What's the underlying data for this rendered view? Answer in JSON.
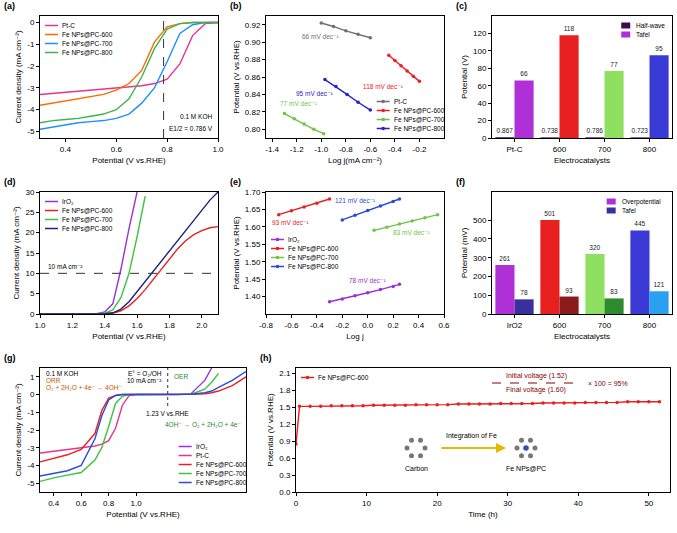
{
  "chart_data": [
    {
      "label": "(a)",
      "type": "line",
      "xlabel": "Potential (V vs.RHE)",
      "ylabel": "Current density (mA cm⁻²)",
      "xlim": [
        0.3,
        1.0
      ],
      "xticks": [
        0.4,
        0.6,
        0.8,
        {
          "value": 1,
          "label": "1.0"
        }
      ],
      "ylim": [
        -5.3,
        0.3
      ],
      "yticks": [
        -5,
        -4,
        -3,
        -2,
        -1,
        0
      ],
      "grid": false,
      "legend": "top left",
      "x": [
        0.3,
        0.35,
        0.4,
        0.45,
        0.5,
        0.55,
        0.6,
        0.65,
        0.7,
        0.75,
        0.8,
        0.85,
        0.9,
        0.95,
        1.0
      ],
      "series": [
        {
          "name": "Pt-C",
          "color": "#e8338f",
          "values": [
            -3.3,
            -3.25,
            -3.2,
            -3.15,
            -3.1,
            -3.05,
            -3.0,
            -2.95,
            -2.9,
            -2.8,
            -2.6,
            -1.9,
            -0.6,
            -0.05,
            0
          ]
        },
        {
          "name": "Fe NPs@PC-600",
          "color": "#ff6a00",
          "values": [
            -3.8,
            -3.7,
            -3.6,
            -3.5,
            -3.4,
            -3.3,
            -3.1,
            -2.8,
            -2.2,
            -0.9,
            -0.2,
            -0.05,
            0,
            0,
            0
          ]
        },
        {
          "name": "Fe NPs@PC-700",
          "color": "#1e90ff",
          "values": [
            -4.9,
            -4.8,
            -4.7,
            -4.6,
            -4.55,
            -4.5,
            -4.4,
            -4.2,
            -3.7,
            -3.0,
            -1.8,
            -0.5,
            -0.1,
            0,
            0
          ]
        },
        {
          "name": "Fe NPs@PC-800",
          "color": "#3cb44b",
          "values": [
            -4.6,
            -4.5,
            -4.45,
            -4.4,
            -4.3,
            -4.2,
            -4.0,
            -3.5,
            -2.5,
            -1.2,
            -0.3,
            -0.05,
            0,
            0,
            0
          ]
        }
      ],
      "annotations": [
        "0.1 M KOH"
      ],
      "vline": {
        "value": 0.786,
        "label": "E1/2 = 0.786 V"
      }
    },
    {
      "label": "(b)",
      "type": "line",
      "marker": "circle",
      "xlabel": "Log j(mA cm⁻²)",
      "ylabel": "Potential (V vs.RHE)",
      "xlim": [
        -1.45,
        0
      ],
      "xticks": [
        -1.4,
        -1.2,
        {
          "value": -1,
          "label": "-1.0"
        },
        -0.8,
        -0.6,
        -0.4,
        -0.2
      ],
      "ylim": [
        0.79,
        0.93
      ],
      "yticks": [
        {
          "value": 0.8,
          "label": "0.80"
        },
        0.82,
        0.84,
        0.86,
        0.88,
        {
          "value": 0.9,
          "label": "0.90"
        },
        0.92
      ],
      "grid": false,
      "legend": "bottom right",
      "series": [
        {
          "name": "Pt-C",
          "color": "#707070",
          "label": "66 mV dec⁻¹",
          "x": [
            -1.0,
            -0.9,
            -0.8,
            -0.7,
            -0.6
          ],
          "values": [
            0.922,
            0.918,
            0.913,
            0.909,
            0.905
          ]
        },
        {
          "name": "Fe NPs@PC-600",
          "color": "#e8201f",
          "label": "118 mV dec⁻¹",
          "x": [
            -0.45,
            -0.4,
            -0.35,
            -0.3,
            -0.25,
            -0.2
          ],
          "values": [
            0.885,
            0.879,
            0.873,
            0.867,
            0.861,
            0.855
          ]
        },
        {
          "name": "Fe NPs@PC-700",
          "color": "#6cc644",
          "label": "77 mV dec⁻¹",
          "x": [
            -1.3,
            -1.22,
            -1.14,
            -1.06,
            -0.98
          ],
          "values": [
            0.818,
            0.812,
            0.806,
            0.8,
            0.795
          ]
        },
        {
          "name": "Fe NPs@PC-800",
          "color": "#2323c8",
          "label": "95 mV dec⁻¹",
          "x": [
            -0.97,
            -0.88,
            -0.79,
            -0.7,
            -0.6
          ],
          "values": [
            0.857,
            0.849,
            0.84,
            0.831,
            0.822
          ]
        }
      ]
    },
    {
      "label": "(c)",
      "type": "bar",
      "xlabel": "Electrocatalysts",
      "ylabel": "Potential (V)",
      "categories": [
        "Pt-C",
        "600",
        "700",
        "800"
      ],
      "ylim": [
        0,
        140
      ],
      "yticks": [
        0,
        20,
        40,
        60,
        80,
        100,
        120
      ],
      "grid": false,
      "legend": "top right",
      "data_labels": true,
      "series": [
        {
          "name": "Half-wave",
          "color": "#3b0f4f",
          "values": [
            0.867,
            0.738,
            0.786,
            0.723
          ]
        },
        {
          "name": "Tafel",
          "color": "#b030d8",
          "colors": [
            "#b030d8",
            "#e8201f",
            "#8fe060",
            "#3a3ad6"
          ],
          "values": [
            66,
            118,
            77,
            95
          ]
        }
      ]
    },
    {
      "label": "(d)",
      "type": "line",
      "xlabel": "Potential (V vs.RHE)",
      "ylabel": "Current density (mA cm⁻²)",
      "xlim": [
        1.0,
        2.1
      ],
      "xticks": [
        {
          "value": 1,
          "label": "1.0"
        },
        1.2,
        1.4,
        1.6,
        1.8,
        {
          "value": 2,
          "label": "2.0"
        }
      ],
      "ylim": [
        0,
        30
      ],
      "yticks": [
        0,
        5,
        10,
        15,
        20,
        25,
        30
      ],
      "grid": false,
      "legend": "top left",
      "x": [
        1.0,
        1.2,
        1.35,
        1.4,
        1.45,
        1.5,
        1.55,
        1.6,
        1.65,
        1.7,
        1.75,
        1.8,
        1.85,
        1.9,
        1.95,
        2.0,
        2.05,
        2.1
      ],
      "series": [
        {
          "name": "IrO₂",
          "color": "#9b30d9",
          "values": [
            0,
            0,
            0.1,
            0.5,
            2.5,
            11,
            21,
            30,
            null,
            null,
            null,
            null,
            null,
            null,
            null,
            null,
            null,
            null
          ]
        },
        {
          "name": "Fe NPs@PC-600",
          "color": "#e8201f",
          "values": [
            0,
            0,
            0,
            0.05,
            0.2,
            0.8,
            2,
            3.8,
            6,
            8.5,
            11,
            13.5,
            16,
            18,
            19.5,
            20.5,
            21.2,
            21.5
          ]
        },
        {
          "name": "Fe NPs@PC-700",
          "color": "#3cc43c",
          "values": [
            0,
            0,
            0.05,
            0.2,
            1.0,
            4.0,
            10,
            19,
            29,
            null,
            null,
            null,
            null,
            null,
            null,
            null,
            null,
            null
          ]
        },
        {
          "name": "Fe NPs@PC-800",
          "color": "#1a237e",
          "values": [
            0,
            0,
            0,
            0.05,
            0.3,
            1.2,
            3,
            5.5,
            8,
            10.5,
            13,
            15.5,
            18,
            20.5,
            23,
            25.5,
            28,
            30
          ]
        }
      ],
      "hline": {
        "value": 10,
        "label": "10 mA cm⁻²"
      }
    },
    {
      "label": "(e)",
      "type": "line",
      "marker": "circle",
      "xlabel": "Log j",
      "ylabel": "Potential (V vs.RHE)",
      "xlim": [
        -0.8,
        0.6
      ],
      "xticks": [
        -0.8,
        -0.6,
        -0.4,
        -0.2,
        {
          "value": 0,
          "label": "0.0"
        },
        0.2,
        0.4,
        0.6
      ],
      "ylim": [
        1.35,
        1.7
      ],
      "yticks": [
        {
          "value": 1.4,
          "label": "1.40"
        },
        1.45,
        {
          "value": 1.5,
          "label": "1.50"
        },
        1.55,
        {
          "value": 1.6,
          "label": "1.60"
        },
        1.65,
        {
          "value": 1.7,
          "label": "1.70"
        }
      ],
      "grid": false,
      "legend": "middle left",
      "series": [
        {
          "name": "IrO₂",
          "color": "#9b30d9",
          "label": "78 mV dec⁻¹",
          "x": [
            -0.3,
            -0.2,
            -0.1,
            0,
            0.1,
            0.2,
            0.25
          ],
          "values": [
            1.385,
            1.393,
            1.402,
            1.411,
            1.42,
            1.429,
            1.435
          ]
        },
        {
          "name": "Fe NPs@PC-600",
          "color": "#e8201f",
          "label": "93 mV dec⁻¹",
          "x": [
            -0.7,
            -0.6,
            -0.5,
            -0.4,
            -0.3
          ],
          "values": [
            1.635,
            1.646,
            1.657,
            1.668,
            1.68
          ]
        },
        {
          "name": "Fe NPs@PC-700",
          "color": "#6cc644",
          "label": "83 mV dec⁻¹",
          "x": [
            0.05,
            0.15,
            0.25,
            0.35,
            0.45,
            0.55
          ],
          "values": [
            1.59,
            1.599,
            1.608,
            1.617,
            1.626,
            1.635
          ]
        },
        {
          "name": "Fe NPs@PC-800",
          "color": "#2a4bd7",
          "label": "121 mV dec⁻¹",
          "x": [
            -0.2,
            -0.1,
            0,
            0.1,
            0.2,
            0.25
          ],
          "values": [
            1.62,
            1.633,
            1.647,
            1.66,
            1.673,
            1.68
          ]
        }
      ]
    },
    {
      "label": "(f)",
      "type": "bar",
      "xlabel": "Electrocatalysts",
      "ylabel": "Potential (mV)",
      "categories": [
        "IrO2",
        "600",
        "700",
        "800"
      ],
      "ylim": [
        0,
        650
      ],
      "yticks": [
        0,
        100,
        200,
        300,
        400,
        500
      ],
      "grid": false,
      "legend": "top right",
      "data_labels": true,
      "series": [
        {
          "name": "Overpotential",
          "color": "#b030d8",
          "colors": [
            "#b030d8",
            "#e8201f",
            "#8fe060",
            "#3a3ad6"
          ],
          "values": [
            261,
            501,
            320,
            445
          ]
        },
        {
          "name": "Tafel",
          "color": "#3a2f9e",
          "colors": [
            "#3a2f9e",
            "#8b1a1a",
            "#2e8b2e",
            "#2aa0f0"
          ],
          "values": [
            78,
            93,
            83,
            121
          ]
        }
      ]
    },
    {
      "label": "(g)",
      "type": "line",
      "xlabel": "Potential (V vs.RHE)",
      "ylabel": "Current density (mA cm⁻²)",
      "xlim": [
        0.3,
        1.8
      ],
      "xticks": [
        0.4,
        0.6,
        0.8,
        {
          "value": 1,
          "label": "1.0"
        }
      ],
      "ylim": [
        -5.5,
        1.5
      ],
      "yticks": [
        -5,
        -4,
        -3,
        -2,
        -1,
        0,
        1
      ],
      "grid": false,
      "legend": "bottom right",
      "x": [
        0.3,
        0.4,
        0.5,
        0.6,
        0.7,
        0.75,
        0.8,
        0.85,
        0.9,
        0.95,
        1.0,
        1.3,
        1.4,
        1.5,
        1.55,
        1.6,
        1.7,
        1.8
      ],
      "series": [
        {
          "name": "IrO₂",
          "color": "#9b30d9",
          "values": [
            null,
            null,
            null,
            null,
            null,
            null,
            null,
            null,
            null,
            null,
            0,
            0,
            0.05,
            0.8,
            1.5,
            null,
            null,
            null
          ]
        },
        {
          "name": "Pt-C",
          "color": "#e8338f",
          "values": [
            -3.3,
            -3.2,
            -3.1,
            -3.0,
            -2.9,
            -2.8,
            -2.6,
            -1.9,
            -0.6,
            -0.05,
            0,
            null,
            null,
            null,
            null,
            null,
            null,
            null
          ]
        },
        {
          "name": "Fe NPs@PC-600",
          "color": "#e8201f",
          "values": [
            -3.8,
            -3.6,
            -3.4,
            -3.1,
            -2.2,
            -0.9,
            -0.2,
            -0.05,
            0,
            0,
            0,
            0,
            0.02,
            0.05,
            0.1,
            0.2,
            0.5,
            1.0
          ]
        },
        {
          "name": "Fe NPs@PC-700",
          "color": "#3cc43c",
          "values": [
            -4.9,
            -4.7,
            -4.55,
            -4.4,
            -3.7,
            -3.0,
            -1.8,
            -0.5,
            -0.1,
            0,
            0,
            0,
            0.02,
            0.3,
            0.7,
            1.2,
            null,
            null
          ]
        },
        {
          "name": "Fe NPs@PC-800",
          "color": "#2a4bd7",
          "values": [
            -4.6,
            -4.45,
            -4.3,
            -4.0,
            -2.5,
            -1.2,
            -0.3,
            -0.05,
            0,
            0,
            0,
            0,
            0.02,
            0.1,
            0.2,
            0.4,
            0.8,
            1.3
          ]
        }
      ],
      "annotations": [
        "0.1 M KOH",
        "ORR",
        "O₂ + 2H₂O + 4e⁻ → 4OH⁻",
        "E° = O₂/OH",
        "OER",
        "4OH⁻ → O₂ + 2H₂O + 4e⁻",
        "10 mA cm⁻²"
      ],
      "vline": {
        "value": 1.23,
        "label": "1.23 V vs.RHE"
      }
    },
    {
      "label": "(h)",
      "type": "line",
      "marker": "circle",
      "xlabel": "Time (h)",
      "ylabel": "Potential (V vs.RHE)",
      "xlim": [
        0,
        53
      ],
      "xticks": [
        0,
        10,
        20,
        30,
        40,
        50
      ],
      "ylim": [
        0,
        2.2
      ],
      "yticks": [
        {
          "value": 0,
          "label": "0.0"
        },
        0.3,
        0.6,
        0.9,
        1.2,
        1.5,
        1.8,
        2.1
      ],
      "grid": false,
      "legend": "top left",
      "x": [
        0,
        0.5,
        2,
        3.5,
        5,
        6.5,
        8,
        9.5,
        11,
        12.5,
        14,
        15.5,
        17,
        18.5,
        20,
        21.5,
        23,
        24.5,
        26,
        27.5,
        29,
        30.5,
        32,
        33.5,
        35,
        36.5,
        38,
        39.5,
        41,
        42.5,
        44,
        45.5,
        47,
        48.5,
        50,
        51.5
      ],
      "series": [
        {
          "name": "Fe NPs@PC-600",
          "color": "#e8201f",
          "values": [
            0.85,
            1.52,
            1.52,
            1.52,
            1.53,
            1.53,
            1.53,
            1.53,
            1.54,
            1.54,
            1.54,
            1.54,
            1.55,
            1.55,
            1.55,
            1.55,
            1.56,
            1.56,
            1.56,
            1.56,
            1.57,
            1.57,
            1.57,
            1.57,
            1.58,
            1.58,
            1.58,
            1.58,
            1.59,
            1.59,
            1.59,
            1.59,
            1.6,
            1.6,
            1.6,
            1.6
          ]
        }
      ],
      "annotations": [
        "Initial voltage (1.52)",
        "Final voltage (1.60)",
        "× 100 = 95%",
        "Carbon",
        "Fe NPs@PC",
        "Integration of Fe"
      ]
    }
  ]
}
